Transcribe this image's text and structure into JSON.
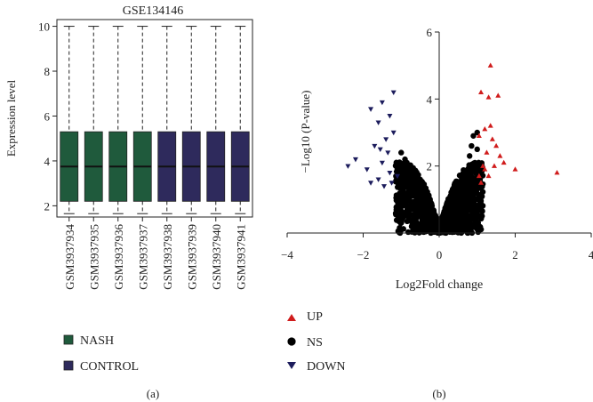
{
  "colors": {
    "nash": "#1f5a3c",
    "control": "#2e2a5c",
    "up": "#d01c1c",
    "ns": "#000000",
    "down": "#1c1c5c"
  },
  "chart_data": [
    {
      "panel": "(a)",
      "type": "boxplot",
      "title": "GSE134146",
      "ylabel": "Expression level",
      "ylim": [
        1.5,
        10.3
      ],
      "yticks": [
        2,
        4,
        6,
        8,
        10
      ],
      "categories": [
        "GSM3937934",
        "GSM3937935",
        "GSM3937936",
        "GSM3937937",
        "GSM3937938",
        "GSM3937939",
        "GSM3937940",
        "GSM3937941"
      ],
      "groups": [
        "NASH",
        "NASH",
        "NASH",
        "NASH",
        "CONTROL",
        "CONTROL",
        "CONTROL",
        "CONTROL"
      ],
      "stats": {
        "min": 1.65,
        "q1": 2.2,
        "median": 3.75,
        "q3": 5.3,
        "max": 10.0
      },
      "legend": [
        {
          "label": "NASH",
          "color": "#1f5a3c"
        },
        {
          "label": "CONTROL",
          "color": "#2e2a5c"
        }
      ]
    },
    {
      "panel": "(b)",
      "type": "scatter",
      "subtype": "volcano",
      "xlabel": "Log2Fold change",
      "ylabel": "−Log10 (P-value)",
      "xlim": [
        -4,
        4
      ],
      "ylim": [
        0,
        6
      ],
      "xticks": [
        -4,
        -2,
        0,
        2,
        4
      ],
      "yticks": [
        2,
        4,
        6
      ],
      "series": [
        {
          "name": "UP",
          "marker": "triangle-up",
          "color": "#d01c1c",
          "points": [
            [
              1.35,
              5.0
            ],
            [
              1.1,
              4.2
            ],
            [
              1.3,
              4.05
            ],
            [
              1.55,
              4.1
            ],
            [
              3.1,
              1.8
            ],
            [
              2.0,
              1.9
            ],
            [
              1.7,
              2.1
            ],
            [
              1.2,
              3.1
            ],
            [
              1.35,
              3.2
            ],
            [
              1.05,
              2.9
            ],
            [
              1.4,
              2.8
            ],
            [
              1.25,
              2.4
            ],
            [
              1.15,
              2.0
            ],
            [
              1.5,
              2.6
            ],
            [
              1.3,
              1.7
            ],
            [
              1.1,
              1.5
            ],
            [
              1.6,
              2.3
            ],
            [
              1.45,
              2.0
            ],
            [
              1.2,
              1.9
            ],
            [
              1.05,
              1.7
            ]
          ]
        },
        {
          "name": "NS",
          "marker": "circle",
          "color": "#000000"
        },
        {
          "name": "DOWN",
          "marker": "triangle-down",
          "color": "#1c1c5c",
          "points": [
            [
              -1.2,
              4.2
            ],
            [
              -1.5,
              3.9
            ],
            [
              -1.8,
              3.7
            ],
            [
              -1.3,
              3.5
            ],
            [
              -1.6,
              3.3
            ],
            [
              -1.2,
              3.0
            ],
            [
              -1.4,
              2.8
            ],
            [
              -1.7,
              2.6
            ],
            [
              -2.4,
              2.0
            ],
            [
              -2.2,
              2.2
            ],
            [
              -1.9,
              1.9
            ],
            [
              -1.5,
              2.1
            ],
            [
              -1.3,
              1.8
            ],
            [
              -1.6,
              1.6
            ],
            [
              -1.1,
              1.7
            ],
            [
              -1.25,
              1.5
            ],
            [
              -1.45,
              1.4
            ],
            [
              -1.8,
              1.5
            ],
            [
              -1.35,
              2.4
            ],
            [
              -1.55,
              2.5
            ]
          ]
        }
      ],
      "legend": [
        {
          "label": "UP",
          "marker": "triangle-up"
        },
        {
          "label": "NS",
          "marker": "circle"
        },
        {
          "label": "DOWN",
          "marker": "triangle-down"
        }
      ]
    }
  ]
}
